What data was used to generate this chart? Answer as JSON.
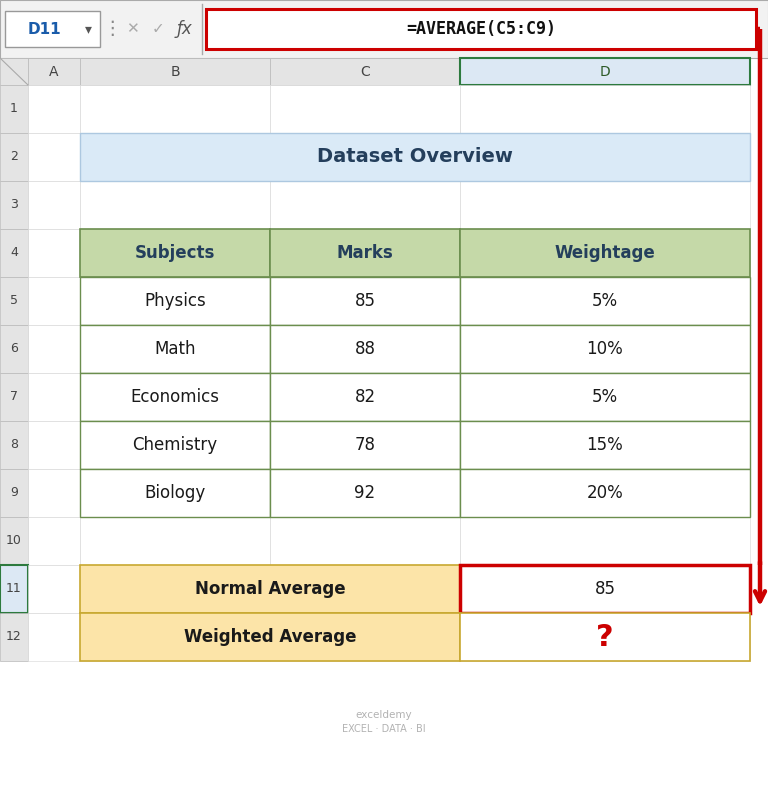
{
  "title": "Dataset Overview",
  "title_bg": "#daeaf7",
  "title_color": "#243f5c",
  "header_bg": "#c5d9a8",
  "header_text_color": "#243f5c",
  "border_color": "#6b8e4e",
  "bottom_label_bg": "#fce4a8",
  "bottom_value_bg": "#ffffff",
  "bottom_border_color": "#c8a830",
  "col_headers": [
    "Subjects",
    "Marks",
    "Weightage"
  ],
  "rows": [
    [
      "Physics",
      "85",
      "5%"
    ],
    [
      "Math",
      "88",
      "10%"
    ],
    [
      "Economics",
      "82",
      "5%"
    ],
    [
      "Chemistry",
      "78",
      "15%"
    ],
    [
      "Biology",
      "92",
      "20%"
    ]
  ],
  "bottom_labels": [
    "Normal Average",
    "Weighted Average"
  ],
  "bottom_values": [
    "85",
    "?"
  ],
  "formula_bar_text": "=AVERAGE(C5:C9)",
  "cell_ref": "D11",
  "col_letters": [
    "A",
    "B",
    "C",
    "D"
  ],
  "row_numbers": [
    "1",
    "2",
    "3",
    "4",
    "5",
    "6",
    "7",
    "8",
    "9",
    "10",
    "11",
    "12"
  ],
  "arrow_color": "#cc0000",
  "question_mark_color": "#cc0000",
  "grid_bg": "#ffffff",
  "outer_bg": "#c8c8c8",
  "formula_bg": "#f2f2f2",
  "watermark_line1": "exceldemy",
  "watermark_line2": "EXCEL · DATA · BI"
}
